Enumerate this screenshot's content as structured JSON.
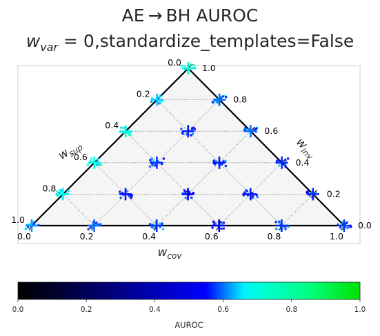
{
  "chart_data": {
    "type": "scatter",
    "subtype": "ternary",
    "title_line1": "AE → BH AUROC",
    "title_line2_var": "w",
    "title_line2_sub": "var",
    "title_line2_rest": " = 0,standardize_templates=False",
    "axis_cov_label": "w",
    "axis_cov_sub": "cov",
    "axis_sup_label": "w",
    "axis_sup_sub": "sup",
    "axis_inv_label": "w",
    "axis_inv_sub": "inv",
    "bottom_ticks": [
      "0.0",
      "0.2",
      "0.4",
      "0.6",
      "0.8",
      "1.0"
    ],
    "left_ticks": [
      "1.0",
      "0.8",
      "0.6",
      "0.4",
      "0.2",
      "0.0"
    ],
    "right_ticks": [
      "1.0",
      "0.8",
      "0.6",
      "0.4",
      "0.2",
      "0.0"
    ],
    "colorbar": {
      "label": "AUROC",
      "ticks": [
        "0.0",
        "0.2",
        "0.4",
        "0.6",
        "0.8",
        "1.0"
      ],
      "range": [
        0,
        1
      ],
      "colormap": "gist_ncar-like (black → blue → cyan → green)"
    },
    "points": [
      {
        "cov": 0.0,
        "sup": 1.0,
        "inv": 0.0,
        "auroc": 0.62
      },
      {
        "cov": 0.2,
        "sup": 0.8,
        "inv": 0.0,
        "auroc": 0.6
      },
      {
        "cov": 0.4,
        "sup": 0.6,
        "inv": 0.0,
        "auroc": 0.57
      },
      {
        "cov": 0.6,
        "sup": 0.4,
        "inv": 0.0,
        "auroc": 0.55
      },
      {
        "cov": 0.8,
        "sup": 0.2,
        "inv": 0.0,
        "auroc": 0.57
      },
      {
        "cov": 1.0,
        "sup": 0.0,
        "inv": 0.0,
        "auroc": 0.58
      },
      {
        "cov": 0.0,
        "sup": 0.8,
        "inv": 0.2,
        "auroc": 0.68
      },
      {
        "cov": 0.2,
        "sup": 0.6,
        "inv": 0.2,
        "auroc": 0.56
      },
      {
        "cov": 0.4,
        "sup": 0.4,
        "inv": 0.2,
        "auroc": 0.55
      },
      {
        "cov": 0.6,
        "sup": 0.2,
        "inv": 0.2,
        "auroc": 0.56
      },
      {
        "cov": 0.8,
        "sup": 0.0,
        "inv": 0.2,
        "auroc": 0.57
      },
      {
        "cov": 0.0,
        "sup": 0.6,
        "inv": 0.4,
        "auroc": 0.7
      },
      {
        "cov": 0.2,
        "sup": 0.4,
        "inv": 0.4,
        "auroc": 0.57
      },
      {
        "cov": 0.4,
        "sup": 0.2,
        "inv": 0.4,
        "auroc": 0.56
      },
      {
        "cov": 0.6,
        "sup": 0.0,
        "inv": 0.4,
        "auroc": 0.57
      },
      {
        "cov": 0.0,
        "sup": 0.4,
        "inv": 0.6,
        "auroc": 0.7
      },
      {
        "cov": 0.2,
        "sup": 0.2,
        "inv": 0.6,
        "auroc": 0.56
      },
      {
        "cov": 0.4,
        "sup": 0.0,
        "inv": 0.6,
        "auroc": 0.6
      },
      {
        "cov": 0.0,
        "sup": 0.2,
        "inv": 0.8,
        "auroc": 0.64
      },
      {
        "cov": 0.2,
        "sup": 0.0,
        "inv": 0.8,
        "auroc": 0.6
      },
      {
        "cov": 0.0,
        "sup": 0.0,
        "inv": 1.0,
        "auroc": 0.7
      }
    ]
  }
}
